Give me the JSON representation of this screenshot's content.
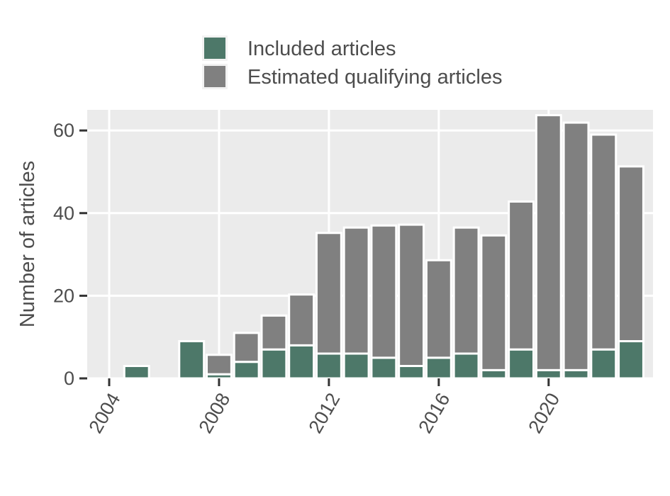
{
  "chart_data": {
    "type": "bar",
    "stacked": true,
    "x": [
      2004,
      2005,
      2006,
      2007,
      2008,
      2009,
      2010,
      2011,
      2012,
      2013,
      2014,
      2015,
      2016,
      2017,
      2018,
      2019,
      2020,
      2021,
      2022,
      2023
    ],
    "series": [
      {
        "name": "Included articles",
        "color": "#4d7869",
        "values": [
          0,
          3,
          0,
          9,
          1,
          4,
          7,
          8,
          6,
          6,
          5,
          3,
          5,
          6,
          2,
          7,
          2,
          2,
          7,
          9
        ]
      },
      {
        "name": "Estimated qualifying articles",
        "color": "#808080",
        "values": [
          0,
          0,
          0,
          0,
          4.7,
          7,
          8.2,
          12.3,
          29.2,
          30.5,
          32,
          34.2,
          23.6,
          30.5,
          32.6,
          35.8,
          61.7,
          59.9,
          52,
          42.3
        ]
      }
    ],
    "xticks": [
      "2004",
      "2008",
      "2012",
      "2016",
      "2020"
    ],
    "yticks": [
      "0",
      "20",
      "40",
      "60"
    ],
    "xlabel": "",
    "ylabel": "Number of articles",
    "xlim": [
      2003.2,
      2023.8
    ],
    "ylim": [
      0,
      65
    ],
    "grid": true,
    "panel_background": "#ebebeb",
    "legend_position": "top"
  }
}
